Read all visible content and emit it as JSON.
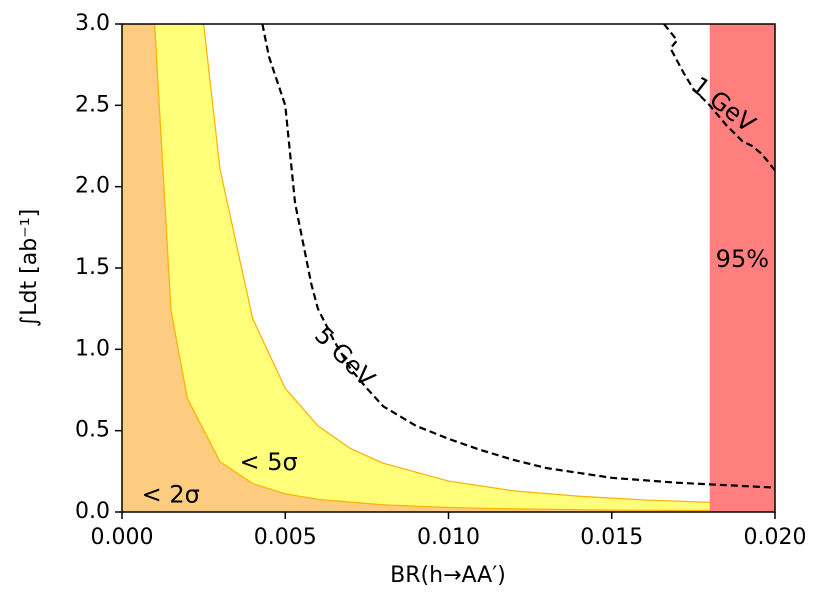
{
  "chart_data": {
    "type": "area",
    "xlabel": "BR(h→AA′)",
    "ylabel": "∫Ldt [ab⁻¹]",
    "xlim": [
      0.0,
      0.02
    ],
    "ylim": [
      0.0,
      3.0
    ],
    "x_ticks": [
      "0.000",
      "0.005",
      "0.010",
      "0.015",
      "0.020"
    ],
    "y_ticks": [
      "0.0",
      "0.5",
      "1.0",
      "1.5",
      "2.0",
      "2.5",
      "3.0"
    ],
    "grid": false,
    "colors": {
      "band_2sigma": "#fdcc80",
      "band_5sigma": "#ffff7a",
      "band_edge": "#ffb000",
      "excluded_95": "#ff7f7f",
      "contour": "#000000"
    },
    "bands": [
      {
        "label": "< 2σ",
        "x": [
          0.0002,
          0.0006,
          0.001,
          0.0015,
          0.002,
          0.003,
          0.004,
          0.005,
          0.006,
          0.008,
          0.01,
          0.012,
          0.015,
          0.018,
          0.02
        ],
        "upper": [
          3.0,
          3.0,
          3.0,
          1.24,
          0.7,
          0.31,
          0.175,
          0.112,
          0.078,
          0.044,
          0.028,
          0.019,
          0.012,
          0.009,
          0.007
        ]
      },
      {
        "label": "< 5σ",
        "x": [
          0.0025,
          0.003,
          0.004,
          0.005,
          0.006,
          0.007,
          0.008,
          0.01,
          0.012,
          0.014,
          0.016,
          0.018,
          0.02
        ],
        "upper": [
          3.0,
          2.11,
          1.19,
          0.76,
          0.53,
          0.39,
          0.3,
          0.19,
          0.13,
          0.097,
          0.074,
          0.059,
          0.048
        ]
      }
    ],
    "excluded_region": {
      "label": "95%",
      "x_min": 0.018,
      "x_max": 0.02
    },
    "contours": [
      {
        "label": "5 GeV",
        "x": [
          0.0043,
          0.0045,
          0.005,
          0.0052,
          0.0053,
          0.0056,
          0.0058,
          0.006,
          0.0065,
          0.007,
          0.0075,
          0.008,
          0.0085,
          0.009,
          0.01,
          0.011,
          0.012,
          0.013,
          0.014,
          0.015,
          0.016,
          0.017,
          0.018,
          0.019,
          0.02
        ],
        "y": [
          3.0,
          2.8,
          2.5,
          2.1,
          1.9,
          1.6,
          1.4,
          1.25,
          1.05,
          0.88,
          0.76,
          0.65,
          0.59,
          0.53,
          0.45,
          0.38,
          0.32,
          0.27,
          0.24,
          0.21,
          0.195,
          0.18,
          0.17,
          0.16,
          0.15
        ]
      },
      {
        "label": "1 GeV",
        "x": [
          0.0166,
          0.017,
          0.0168,
          0.0172,
          0.0175,
          0.018,
          0.0185,
          0.019,
          0.0193,
          0.0196,
          0.02
        ],
        "y": [
          3.0,
          2.9,
          2.85,
          2.7,
          2.6,
          2.5,
          2.38,
          2.28,
          2.25,
          2.2,
          2.1
        ]
      }
    ]
  }
}
